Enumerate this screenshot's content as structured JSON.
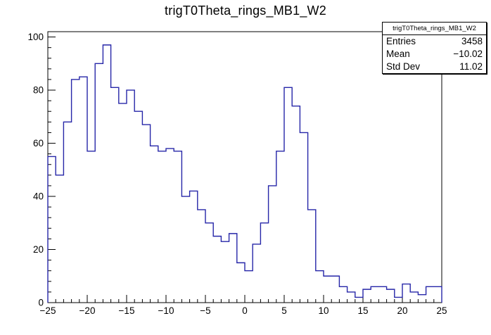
{
  "title": "trigT0Theta_rings_MB1_W2",
  "stats_box": {
    "header": "trigT0Theta_rings_MB1_W2",
    "rows": [
      {
        "label": "Entries",
        "value": "3458"
      },
      {
        "label": "Mean",
        "value": "−10.02"
      },
      {
        "label": "Std Dev",
        "value": "11.02"
      }
    ]
  },
  "chart_data": {
    "type": "bar",
    "style": "step-histogram",
    "title": "trigT0Theta_rings_MB1_W2",
    "xlabel": "",
    "ylabel": "",
    "x_start": -25,
    "bin_width": 1,
    "values": [
      55,
      48,
      68,
      84,
      85,
      57,
      90,
      97,
      81,
      75,
      80,
      72,
      67,
      59,
      57,
      58,
      57,
      40,
      42,
      35,
      30,
      25,
      23,
      26,
      15,
      12,
      22,
      30,
      44,
      57,
      81,
      74,
      64,
      35,
      12,
      10,
      10,
      6,
      4,
      2,
      5,
      6,
      6,
      5,
      2,
      7,
      4,
      3,
      6,
      6
    ],
    "xlim": [
      -25,
      25
    ],
    "ylim": [
      0,
      102
    ],
    "xticks": [
      -25,
      -20,
      -15,
      -10,
      -5,
      0,
      5,
      10,
      15,
      20,
      25
    ],
    "x_minor_step": 1,
    "yticks": [
      0,
      20,
      40,
      60,
      80,
      100
    ],
    "y_minor_step": 4,
    "grid": false,
    "legend": "none",
    "line_color": "#2626a8",
    "frame_color": "#000000",
    "text_color": "#000000",
    "background": "#ffffff",
    "stats": {
      "entries": 3458,
      "mean": -10.02,
      "std_dev": 11.02
    }
  }
}
